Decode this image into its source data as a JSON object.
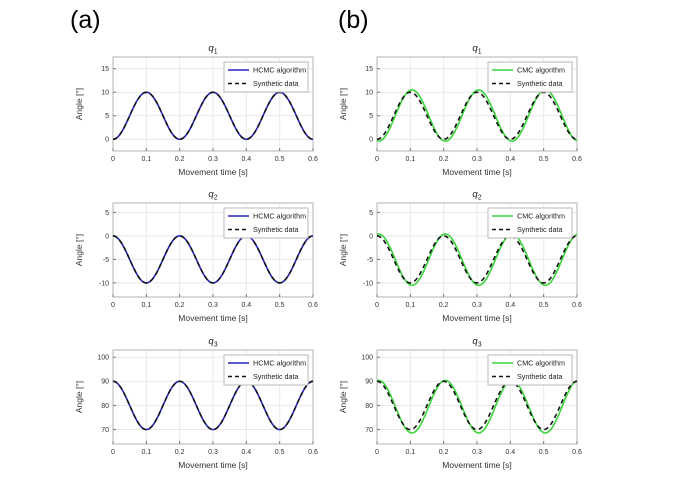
{
  "figure": {
    "panel_a_label": "(a)",
    "panel_b_label": "(b)"
  },
  "style": {
    "hcmc_blue": "#2323bd",
    "cmc_green": "#3bd43b",
    "synthetic_black": "#141414",
    "grid_color": "#e8e8e8",
    "axis_border_color": "#b3b3b3",
    "tick_text_color": "#333333",
    "title_color": "#222222",
    "legend_border_color": "#b8b8b8",
    "legend_bg": "#ffffff"
  },
  "chart_data": [
    {
      "id": "a-q1",
      "panel": "a",
      "type": "line",
      "title": {
        "base": "q",
        "sub": "1"
      },
      "xlabel": "Movement time [s]",
      "ylabel": "Angle [°]",
      "xlim": [
        0,
        0.6
      ],
      "x_ticks": [
        0,
        0.1,
        0.2,
        0.3,
        0.4,
        0.5,
        0.6
      ],
      "x_tick_labels": [
        "0",
        "0.1",
        "0.2",
        "0.3",
        "0.4",
        "0.5",
        "0.6"
      ],
      "ylim": [
        -2.5,
        17.5
      ],
      "y_ticks": [
        0,
        5,
        10,
        15
      ],
      "y_tick_labels": [
        "0",
        "5",
        "10",
        "15"
      ],
      "grid": true,
      "legend_position": "northeast",
      "series": [
        {
          "name": "HCMC algorithm",
          "color": "#2323bd",
          "dash": "solid",
          "model": {
            "type": "cosine",
            "offset": 5,
            "amplitude": -5,
            "period": 0.2,
            "delay": 0
          },
          "summary": {
            "start": 0,
            "peak": 10,
            "peak_times": [
              0.1,
              0.3,
              0.5
            ],
            "min": 0
          }
        },
        {
          "name": "Synthetic data",
          "color": "#141414",
          "dash": "dashed",
          "model": {
            "type": "cosine",
            "offset": 5,
            "amplitude": -5,
            "period": 0.2,
            "delay": 0
          },
          "summary": {
            "start": 0,
            "peak": 10,
            "peak_times": [
              0.1,
              0.3,
              0.5
            ],
            "min": 0
          }
        }
      ]
    },
    {
      "id": "b-q1",
      "panel": "b",
      "type": "line",
      "title": {
        "base": "q",
        "sub": "1"
      },
      "xlabel": "Movement time [s]",
      "ylabel": "Angle [°]",
      "xlim": [
        0,
        0.6
      ],
      "x_ticks": [
        0,
        0.1,
        0.2,
        0.3,
        0.4,
        0.5,
        0.6
      ],
      "x_tick_labels": [
        "0",
        "0.1",
        "0.2",
        "0.3",
        "0.4",
        "0.5",
        "0.6"
      ],
      "ylim": [
        -2.5,
        17.5
      ],
      "y_ticks": [
        0,
        5,
        10,
        15
      ],
      "y_tick_labels": [
        "0",
        "5",
        "10",
        "15"
      ],
      "grid": true,
      "legend_position": "northeast",
      "series": [
        {
          "name": "CMC algorithm",
          "color": "#3bd43b",
          "dash": "solid",
          "model": {
            "type": "cosine",
            "offset": 5.05,
            "amplitude": -5.45,
            "period": 0.2,
            "delay": 0.005
          },
          "summary": {
            "start": -0.3,
            "peak": 10.5,
            "peak_times": [
              0.105,
              0.305,
              0.505
            ],
            "min": -0.4
          }
        },
        {
          "name": "Synthetic data",
          "color": "#141414",
          "dash": "dashed",
          "model": {
            "type": "cosine",
            "offset": 5,
            "amplitude": -5,
            "period": 0.2,
            "delay": 0
          },
          "summary": {
            "start": 0,
            "peak": 10,
            "peak_times": [
              0.1,
              0.3,
              0.5
            ],
            "min": 0
          }
        }
      ]
    },
    {
      "id": "a-q2",
      "panel": "a",
      "type": "line",
      "title": {
        "base": "q",
        "sub": "2"
      },
      "xlabel": "Movement time [s]",
      "ylabel": "Angle [°]",
      "xlim": [
        0,
        0.6
      ],
      "x_ticks": [
        0,
        0.1,
        0.2,
        0.3,
        0.4,
        0.5,
        0.6
      ],
      "x_tick_labels": [
        "0",
        "0.1",
        "0.2",
        "0.3",
        "0.4",
        "0.5",
        "0.6"
      ],
      "ylim": [
        -13,
        7
      ],
      "y_ticks": [
        -10,
        -5,
        0,
        5
      ],
      "y_tick_labels": [
        "-10",
        "-5",
        "0",
        "5"
      ],
      "grid": true,
      "legend_position": "northeast",
      "series": [
        {
          "name": "HCMC algorithm",
          "color": "#2323bd",
          "dash": "solid",
          "model": {
            "type": "cosine",
            "offset": -5,
            "amplitude": 5,
            "period": 0.2,
            "delay": 0
          },
          "summary": {
            "start": 0,
            "trough": -10,
            "trough_times": [
              0.1,
              0.3,
              0.5
            ],
            "max": 0
          }
        },
        {
          "name": "Synthetic data",
          "color": "#141414",
          "dash": "dashed",
          "model": {
            "type": "cosine",
            "offset": -5,
            "amplitude": 5,
            "period": 0.2,
            "delay": 0
          },
          "summary": {
            "start": 0,
            "trough": -10,
            "trough_times": [
              0.1,
              0.3,
              0.5
            ],
            "max": 0
          }
        }
      ]
    },
    {
      "id": "b-q2",
      "panel": "b",
      "type": "line",
      "title": {
        "base": "q",
        "sub": "2"
      },
      "xlabel": "Movement time [s]",
      "ylabel": "Angle [°]",
      "xlim": [
        0,
        0.6
      ],
      "x_ticks": [
        0,
        0.1,
        0.2,
        0.3,
        0.4,
        0.5,
        0.6
      ],
      "x_tick_labels": [
        "0",
        "0.1",
        "0.2",
        "0.3",
        "0.4",
        "0.5",
        "0.6"
      ],
      "ylim": [
        -13,
        7
      ],
      "y_ticks": [
        -10,
        -5,
        0,
        5
      ],
      "y_tick_labels": [
        "-10",
        "-5",
        "0",
        "5"
      ],
      "grid": true,
      "legend_position": "northeast",
      "series": [
        {
          "name": "CMC algorithm",
          "color": "#3bd43b",
          "dash": "solid",
          "model": {
            "type": "cosine",
            "offset": -5.05,
            "amplitude": 5.45,
            "period": 0.2,
            "delay": 0.005
          },
          "summary": {
            "start": 0.3,
            "trough": -10.5,
            "trough_times": [
              0.105,
              0.305,
              0.505
            ],
            "max": 0.4
          }
        },
        {
          "name": "Synthetic data",
          "color": "#141414",
          "dash": "dashed",
          "model": {
            "type": "cosine",
            "offset": -5,
            "amplitude": 5,
            "period": 0.2,
            "delay": 0
          },
          "summary": {
            "start": 0,
            "trough": -10,
            "trough_times": [
              0.1,
              0.3,
              0.5
            ],
            "max": 0
          }
        }
      ]
    },
    {
      "id": "a-q3",
      "panel": "a",
      "type": "line",
      "title": {
        "base": "q",
        "sub": "3"
      },
      "xlabel": "Movement time [s]",
      "ylabel": "Angle [°]",
      "xlim": [
        0,
        0.6
      ],
      "x_ticks": [
        0,
        0.1,
        0.2,
        0.3,
        0.4,
        0.5,
        0.6
      ],
      "x_tick_labels": [
        "0",
        "0.1",
        "0.2",
        "0.3",
        "0.4",
        "0.5",
        "0.6"
      ],
      "ylim": [
        64,
        103
      ],
      "y_ticks": [
        70,
        80,
        90,
        100
      ],
      "y_tick_labels": [
        "70",
        "80",
        "90",
        "100"
      ],
      "grid": true,
      "legend_position": "northeast",
      "series": [
        {
          "name": "HCMC algorithm",
          "color": "#2323bd",
          "dash": "solid",
          "model": {
            "type": "cosine",
            "offset": 80,
            "amplitude": 10,
            "period": 0.2,
            "delay": 0
          },
          "summary": {
            "start": 90,
            "trough": 70,
            "trough_times": [
              0.1,
              0.3,
              0.5
            ],
            "max": 90
          }
        },
        {
          "name": "Synthetic data",
          "color": "#141414",
          "dash": "dashed",
          "model": {
            "type": "cosine",
            "offset": 80,
            "amplitude": 10,
            "period": 0.2,
            "delay": 0
          },
          "summary": {
            "start": 90,
            "trough": 70,
            "trough_times": [
              0.1,
              0.3,
              0.5
            ],
            "max": 90
          }
        }
      ]
    },
    {
      "id": "b-q3",
      "panel": "b",
      "type": "line",
      "title": {
        "base": "q",
        "sub": "3"
      },
      "xlabel": "Movement time [s]",
      "ylabel": "Angle [°]",
      "xlim": [
        0,
        0.6
      ],
      "x_ticks": [
        0,
        0.1,
        0.2,
        0.3,
        0.4,
        0.5,
        0.6
      ],
      "x_tick_labels": [
        "0",
        "0.1",
        "0.2",
        "0.3",
        "0.4",
        "0.5",
        "0.6"
      ],
      "ylim": [
        64,
        103
      ],
      "y_ticks": [
        70,
        80,
        90,
        100
      ],
      "y_tick_labels": [
        "70",
        "80",
        "90",
        "100"
      ],
      "grid": true,
      "legend_position": "northeast",
      "series": [
        {
          "name": "CMC algorithm",
          "color": "#3bd43b",
          "dash": "solid",
          "model": {
            "type": "cosine",
            "offset": 79.5,
            "amplitude": 10.9,
            "period": 0.2,
            "delay": 0.005
          },
          "summary": {
            "start": 90.3,
            "trough": 68.6,
            "trough_times": [
              0.105,
              0.305,
              0.505
            ],
            "max": 90.4
          }
        },
        {
          "name": "Synthetic data",
          "color": "#141414",
          "dash": "dashed",
          "model": {
            "type": "cosine",
            "offset": 80,
            "amplitude": 10,
            "period": 0.2,
            "delay": 0
          },
          "summary": {
            "start": 90,
            "trough": 70,
            "trough_times": [
              0.1,
              0.3,
              0.5
            ],
            "max": 90
          }
        }
      ]
    }
  ]
}
